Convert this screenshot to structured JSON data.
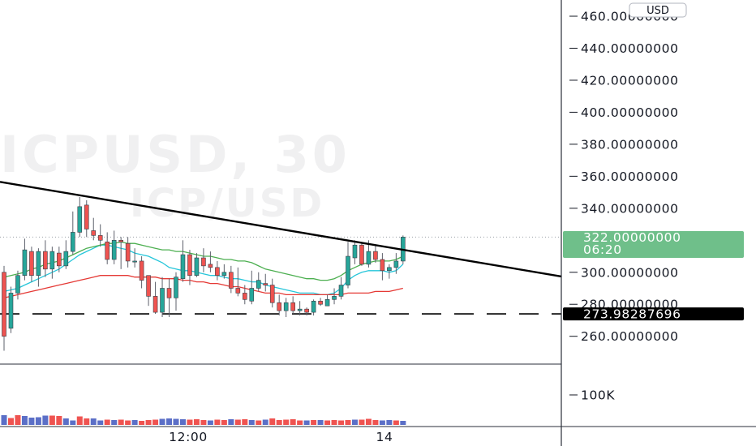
{
  "watermark": {
    "line1": "ICPUSD, 30",
    "line2": "ICP/USD"
  },
  "currency": "USD",
  "price_badge": {
    "price": "322.00000000",
    "countdown": "06:20"
  },
  "level_badge": "273.98287696",
  "colors": {
    "up": "#26a69a",
    "down": "#ef5350",
    "wick": "#5d606b",
    "ema_fast": "#26c6da",
    "ema_mid": "#4caf50",
    "ema_slow": "#e53935",
    "trendline": "#000000",
    "level_line": "#000000",
    "price_badge": "#6fbf8a",
    "level_badge": "#000000",
    "vol_up": "#5b6fc7",
    "vol_down": "#ef5350"
  },
  "chart_data": {
    "type": "candlestick",
    "symbol": "ICPUSD",
    "pair": "ICP/USD",
    "interval": "30",
    "y_axis": {
      "ticks": [
        "460.00000000",
        "440.00000000",
        "420.00000000",
        "400.00000000",
        "380.00000000",
        "360.00000000",
        "340.00000000",
        "300.00000000",
        "280.00000000",
        "260.00000000"
      ],
      "ylim": [
        243,
        466
      ]
    },
    "x_axis": {
      "ticks": [
        "12:00",
        "14"
      ]
    },
    "volume_axis": {
      "ticks": [
        "100K"
      ]
    },
    "last_price": 322.0,
    "horizontal_level": 273.98287696,
    "trendline": {
      "start": 356.5,
      "end": 297.4
    },
    "candles": [
      [
        300,
        260,
        304,
        251
      ],
      [
        265,
        287,
        291,
        262
      ],
      [
        287,
        298,
        301,
        283
      ],
      [
        298,
        314,
        321,
        295
      ],
      [
        313,
        298,
        316,
        294
      ],
      [
        298,
        313,
        315,
        291
      ],
      [
        313,
        302,
        320,
        297
      ],
      [
        302,
        313,
        316,
        296
      ],
      [
        312,
        304,
        316,
        300
      ],
      [
        304,
        313,
        320,
        302
      ],
      [
        313,
        325,
        338,
        311
      ],
      [
        325,
        341,
        347,
        322
      ],
      [
        342,
        327,
        345,
        322
      ],
      [
        326,
        323,
        334,
        320
      ],
      [
        323,
        320,
        330,
        316
      ],
      [
        319,
        308,
        325,
        305
      ],
      [
        308,
        320,
        326,
        305
      ],
      [
        320,
        319,
        322,
        302
      ],
      [
        318,
        307,
        322,
        303
      ],
      [
        307,
        307,
        315,
        303
      ],
      [
        307,
        295,
        310,
        290
      ],
      [
        298,
        285,
        298,
        279
      ],
      [
        285,
        275,
        294,
        274
      ],
      [
        275,
        290,
        297,
        272
      ],
      [
        290,
        284,
        296,
        272
      ],
      [
        284,
        297,
        300,
        276
      ],
      [
        296,
        311,
        320,
        294
      ],
      [
        311,
        298,
        314,
        292
      ],
      [
        298,
        309,
        312,
        297
      ],
      [
        309,
        304,
        315,
        300
      ],
      [
        305,
        303,
        313,
        300
      ],
      [
        303,
        298,
        307,
        295
      ],
      [
        298,
        300,
        305,
        296
      ],
      [
        300,
        290,
        304,
        287
      ],
      [
        290,
        287,
        303,
        285
      ],
      [
        287,
        283,
        292,
        280
      ],
      [
        282,
        290,
        301,
        280
      ],
      [
        290,
        295,
        300,
        288
      ],
      [
        293,
        292,
        299,
        288
      ],
      [
        292,
        281,
        296,
        278
      ],
      [
        281,
        276,
        286,
        273
      ],
      [
        276,
        281,
        284,
        272
      ],
      [
        281,
        276,
        285,
        274
      ],
      [
        276,
        277,
        282,
        273
      ],
      [
        277,
        275,
        278,
        273
      ],
      [
        275,
        282,
        283,
        273
      ],
      [
        282,
        280,
        284,
        279
      ],
      [
        279,
        283,
        286,
        279
      ],
      [
        283,
        285,
        290,
        280
      ],
      [
        285,
        292,
        297,
        283
      ],
      [
        292,
        310,
        319,
        290
      ],
      [
        309,
        317,
        320,
        305
      ],
      [
        317,
        305,
        318,
        304
      ],
      [
        305,
        313,
        320,
        303
      ],
      [
        313,
        308,
        317,
        306
      ],
      [
        308,
        301,
        312,
        295
      ],
      [
        301,
        303,
        305,
        296
      ],
      [
        303,
        307,
        312,
        299
      ],
      [
        307,
        322,
        323,
        305
      ]
    ],
    "ema_fast": [
      288,
      289,
      290,
      292,
      294,
      296,
      298,
      300,
      302,
      305,
      308,
      311,
      313,
      315,
      317,
      317,
      316,
      315,
      314,
      312,
      311,
      310,
      308,
      306,
      303,
      302,
      301,
      301,
      300,
      299,
      298,
      298,
      297,
      296,
      296,
      295,
      294,
      294,
      292,
      291,
      290,
      289,
      288,
      287,
      287,
      287,
      286,
      286,
      287,
      290,
      295,
      298,
      300,
      301,
      301,
      301,
      300,
      301,
      305
    ],
    "ema_mid": [
      297,
      298,
      299,
      300,
      302,
      303,
      305,
      306,
      307,
      309,
      311,
      313,
      315,
      316,
      317,
      318,
      318,
      319,
      318,
      318,
      317,
      316,
      315,
      314,
      314,
      313,
      313,
      312,
      311,
      310,
      310,
      309,
      308,
      308,
      307,
      307,
      306,
      304,
      302,
      301,
      300,
      299,
      298,
      297,
      296,
      296,
      295,
      295,
      296,
      298,
      301,
      303,
      305,
      306,
      307,
      307,
      307,
      308,
      310
    ],
    "ema_slow": [
      284,
      285,
      286,
      287,
      288,
      289,
      290,
      291,
      292,
      293,
      294,
      295,
      296,
      297,
      298,
      298,
      298,
      298,
      298,
      297,
      297,
      297,
      297,
      296,
      296,
      296,
      295,
      295,
      294,
      294,
      293,
      293,
      292,
      291,
      291,
      290,
      289,
      288,
      287,
      287,
      287,
      286,
      286,
      286,
      286,
      286,
      286,
      286,
      286,
      286,
      287,
      287,
      287,
      287,
      288,
      288,
      288,
      289,
      290
    ],
    "volumes": [
      [
        24,
        "up"
      ],
      [
        17,
        "down"
      ],
      [
        24,
        "down"
      ],
      [
        22,
        "up"
      ],
      [
        18,
        "up"
      ],
      [
        19,
        "up"
      ],
      [
        23,
        "up"
      ],
      [
        23,
        "down"
      ],
      [
        22,
        "down"
      ],
      [
        16,
        "up"
      ],
      [
        11,
        "up"
      ],
      [
        21,
        "down"
      ],
      [
        16,
        "down"
      ],
      [
        16,
        "up"
      ],
      [
        11,
        "up"
      ],
      [
        13,
        "down"
      ],
      [
        12,
        "up"
      ],
      [
        13,
        "down"
      ],
      [
        11,
        "down"
      ],
      [
        12,
        "up"
      ],
      [
        10,
        "down"
      ],
      [
        12,
        "down"
      ],
      [
        13,
        "down"
      ],
      [
        15,
        "up"
      ],
      [
        16,
        "up"
      ],
      [
        15,
        "up"
      ],
      [
        14,
        "up"
      ],
      [
        13,
        "down"
      ],
      [
        14,
        "down"
      ],
      [
        12,
        "down"
      ],
      [
        11,
        "up"
      ],
      [
        13,
        "down"
      ],
      [
        12,
        "down"
      ],
      [
        14,
        "up"
      ],
      [
        13,
        "down"
      ],
      [
        14,
        "down"
      ],
      [
        12,
        "up"
      ],
      [
        11,
        "down"
      ],
      [
        13,
        "up"
      ],
      [
        16,
        "down"
      ],
      [
        12,
        "down"
      ],
      [
        13,
        "down"
      ],
      [
        14,
        "down"
      ],
      [
        11,
        "down"
      ],
      [
        11,
        "up"
      ],
      [
        12,
        "down"
      ],
      [
        12,
        "up"
      ],
      [
        11,
        "down"
      ],
      [
        12,
        "down"
      ],
      [
        11,
        "down"
      ],
      [
        12,
        "down"
      ],
      [
        13,
        "up"
      ],
      [
        13,
        "down"
      ],
      [
        15,
        "down"
      ],
      [
        12,
        "down"
      ],
      [
        11,
        "up"
      ],
      [
        12,
        "up"
      ],
      [
        11,
        "down"
      ],
      [
        10,
        "up"
      ]
    ]
  }
}
